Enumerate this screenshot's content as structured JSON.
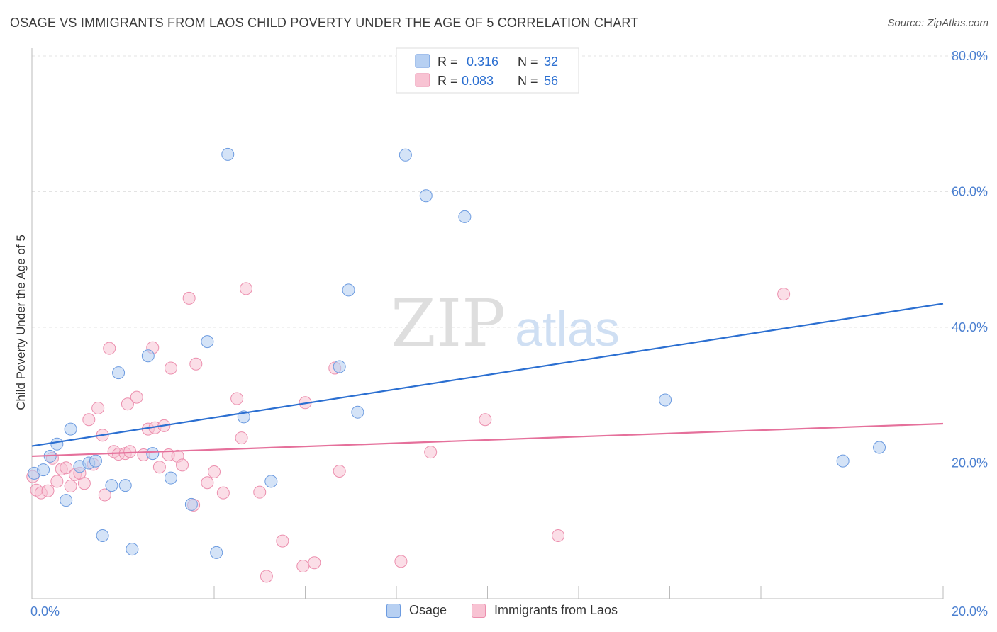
{
  "header": {
    "title": "OSAGE VS IMMIGRANTS FROM LAOS CHILD POVERTY UNDER THE AGE OF 5 CORRELATION CHART",
    "source": "Source: ZipAtlas.com"
  },
  "watermark": {
    "zip": "ZIP",
    "atlas": "atlas"
  },
  "colors": {
    "osage_fill": "#b7d0f2",
    "osage_stroke": "#6c9be0",
    "osage_line": "#2b6fd1",
    "laos_fill": "#f8c3d3",
    "laos_stroke": "#ec8fae",
    "laos_line": "#e5709b",
    "tick_label": "#4a7fd0",
    "grid": "#e3e3e3"
  },
  "legend_top": {
    "rows": [
      {
        "r_label": "R =",
        "r_value": "0.316",
        "n_label": "N =",
        "n_value": "32"
      },
      {
        "r_label": "R =",
        "r_value": "0.083",
        "n_label": "N =",
        "n_value": "56"
      }
    ]
  },
  "chart_data": {
    "type": "scatter",
    "title": "OSAGE VS IMMIGRANTS FROM LAOS CHILD POVERTY UNDER THE AGE OF 5 CORRELATION CHART",
    "xlabel": "",
    "ylabel": "Child Poverty Under the Age of 5",
    "xlim": [
      0,
      20
    ],
    "ylim": [
      0,
      80
    ],
    "x_tick_labels": [
      "0.0%",
      "20.0%"
    ],
    "y_ticks": [
      20,
      40,
      60,
      80
    ],
    "y_tick_labels": [
      "20.0%",
      "40.0%",
      "60.0%",
      "80.0%"
    ],
    "grid": true,
    "legend_position": "bottom",
    "series": [
      {
        "name": "Osage",
        "r": 0.316,
        "n": 32,
        "trend": {
          "x": [
            0,
            20
          ],
          "y": [
            22.5,
            43.5
          ]
        },
        "points": [
          [
            0.05,
            18.5
          ],
          [
            0.25,
            19.0
          ],
          [
            0.4,
            21.0
          ],
          [
            0.55,
            22.8
          ],
          [
            0.75,
            14.5
          ],
          [
            0.85,
            25.0
          ],
          [
            1.05,
            19.5
          ],
          [
            1.25,
            20.0
          ],
          [
            1.4,
            20.3
          ],
          [
            1.55,
            9.3
          ],
          [
            1.75,
            16.7
          ],
          [
            1.9,
            33.3
          ],
          [
            2.05,
            16.7
          ],
          [
            2.2,
            7.3
          ],
          [
            2.55,
            35.8
          ],
          [
            2.65,
            21.4
          ],
          [
            3.05,
            17.8
          ],
          [
            3.5,
            13.9
          ],
          [
            3.85,
            37.9
          ],
          [
            4.05,
            6.8
          ],
          [
            4.3,
            65.5
          ],
          [
            4.65,
            26.8
          ],
          [
            5.25,
            17.3
          ],
          [
            6.75,
            34.2
          ],
          [
            6.95,
            45.5
          ],
          [
            7.15,
            27.5
          ],
          [
            8.2,
            65.4
          ],
          [
            8.65,
            59.4
          ],
          [
            9.5,
            56.3
          ],
          [
            13.9,
            29.3
          ],
          [
            17.8,
            20.3
          ],
          [
            18.6,
            22.3
          ]
        ]
      },
      {
        "name": "Immigrants from Laos",
        "r": 0.083,
        "n": 56,
        "trend": {
          "x": [
            0,
            20
          ],
          "y": [
            21.0,
            25.8
          ]
        },
        "points": [
          [
            0.02,
            18.0
          ],
          [
            0.1,
            16.0
          ],
          [
            0.2,
            15.6
          ],
          [
            0.35,
            15.9
          ],
          [
            0.45,
            20.7
          ],
          [
            0.55,
            17.3
          ],
          [
            0.65,
            19.1
          ],
          [
            0.75,
            19.3
          ],
          [
            0.85,
            16.6
          ],
          [
            0.95,
            18.3
          ],
          [
            1.05,
            18.5
          ],
          [
            1.15,
            17.0
          ],
          [
            1.25,
            26.4
          ],
          [
            1.35,
            19.8
          ],
          [
            1.45,
            28.1
          ],
          [
            1.55,
            24.1
          ],
          [
            1.6,
            15.3
          ],
          [
            1.7,
            36.9
          ],
          [
            1.8,
            21.7
          ],
          [
            1.9,
            21.3
          ],
          [
            2.05,
            21.4
          ],
          [
            2.1,
            28.7
          ],
          [
            2.15,
            21.7
          ],
          [
            2.3,
            29.7
          ],
          [
            2.45,
            21.2
          ],
          [
            2.55,
            25.0
          ],
          [
            2.65,
            37.0
          ],
          [
            2.7,
            25.2
          ],
          [
            2.8,
            19.4
          ],
          [
            2.9,
            25.5
          ],
          [
            3.0,
            21.2
          ],
          [
            3.05,
            34.0
          ],
          [
            3.2,
            21.0
          ],
          [
            3.3,
            19.7
          ],
          [
            3.45,
            44.3
          ],
          [
            3.55,
            13.8
          ],
          [
            3.6,
            34.6
          ],
          [
            3.85,
            17.1
          ],
          [
            4.0,
            18.7
          ],
          [
            4.2,
            15.6
          ],
          [
            4.5,
            29.5
          ],
          [
            4.6,
            23.7
          ],
          [
            4.7,
            45.7
          ],
          [
            5.0,
            15.7
          ],
          [
            5.15,
            3.3
          ],
          [
            5.5,
            8.5
          ],
          [
            5.95,
            4.8
          ],
          [
            6.2,
            5.3
          ],
          [
            6.0,
            28.9
          ],
          [
            6.65,
            34.0
          ],
          [
            6.75,
            18.8
          ],
          [
            8.1,
            5.5
          ],
          [
            8.75,
            21.6
          ],
          [
            9.95,
            26.4
          ],
          [
            11.55,
            9.3
          ],
          [
            16.5,
            44.9
          ]
        ]
      }
    ]
  }
}
